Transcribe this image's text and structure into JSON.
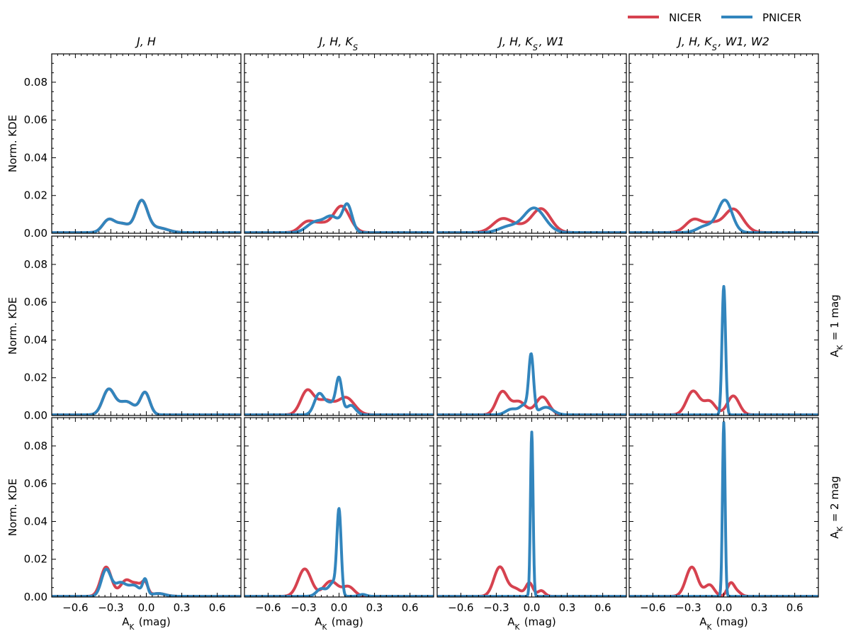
{
  "legend": [
    {
      "name": "NICER",
      "color": "#d6424f"
    },
    {
      "name": "PNICER",
      "color": "#3285bd"
    }
  ],
  "column_titles": [
    "J, H",
    "J, H, K_S",
    "J, H, K_S, W1",
    "J, H, K_S, W1, W2"
  ],
  "row_labels": [
    "",
    "A_K = 1 mag",
    "A_K = 2 mag"
  ],
  "ylabel": "Norm. KDE",
  "xlabel": "A_K (mag)",
  "chart_data": {
    "type": "line",
    "layout": "3x4 grid",
    "xlim": [
      -0.8,
      0.8
    ],
    "ylim": [
      0,
      0.095
    ],
    "xticks": [
      -0.6,
      -0.3,
      0.0,
      0.3,
      0.6
    ],
    "xtick_labels": [
      "−0.6",
      "−0.3",
      "0.0",
      "0.3",
      "0.6"
    ],
    "yticks": [
      0.0,
      0.02,
      0.04,
      0.06,
      0.08
    ],
    "ytick_labels": [
      "0.00",
      "0.02",
      "0.04",
      "0.06",
      "0.08"
    ],
    "panels": [
      {
        "row": 0,
        "col": 0,
        "series": [
          {
            "name": "NICER",
            "gaussians": [
              [
                0.0065,
                -0.32,
                0.05
              ],
              [
                0.0045,
                -0.2,
                0.06
              ],
              [
                0.0165,
                -0.04,
                0.05
              ],
              [
                0.0025,
                0.1,
                0.08
              ]
            ]
          },
          {
            "name": "PNICER",
            "gaussians": [
              [
                0.0065,
                -0.32,
                0.05
              ],
              [
                0.0045,
                -0.2,
                0.06
              ],
              [
                0.0165,
                -0.04,
                0.05
              ],
              [
                0.0025,
                0.1,
                0.08
              ]
            ]
          }
        ]
      },
      {
        "row": 0,
        "col": 1,
        "series": [
          {
            "name": "NICER",
            "gaussians": [
              [
                0.0055,
                -0.27,
                0.06
              ],
              [
                0.004,
                -0.15,
                0.06
              ],
              [
                0.014,
                0.02,
                0.07
              ]
            ]
          },
          {
            "name": "PNICER",
            "gaussians": [
              [
                0.0055,
                -0.2,
                0.07
              ],
              [
                0.008,
                -0.06,
                0.06
              ],
              [
                0.0145,
                0.07,
                0.04
              ]
            ]
          }
        ]
      },
      {
        "row": 0,
        "col": 2,
        "series": [
          {
            "name": "NICER",
            "gaussians": [
              [
                0.007,
                -0.25,
                0.08
              ],
              [
                0.0025,
                -0.1,
                0.08
              ],
              [
                0.0125,
                0.08,
                0.08
              ]
            ]
          },
          {
            "name": "PNICER",
            "gaussians": [
              [
                0.003,
                -0.2,
                0.08
              ],
              [
                0.013,
                0.02,
                0.09
              ]
            ]
          }
        ]
      },
      {
        "row": 0,
        "col": 3,
        "series": [
          {
            "name": "NICER",
            "gaussians": [
              [
                0.007,
                -0.25,
                0.07
              ],
              [
                0.004,
                -0.1,
                0.06
              ],
              [
                0.0125,
                0.08,
                0.08
              ]
            ]
          },
          {
            "name": "PNICER",
            "gaussians": [
              [
                0.0035,
                -0.15,
                0.07
              ],
              [
                0.017,
                0.01,
                0.06
              ]
            ]
          }
        ]
      },
      {
        "row": 1,
        "col": 0,
        "series": [
          {
            "name": "NICER",
            "gaussians": [
              [
                0.013,
                -0.32,
                0.05
              ],
              [
                0.007,
                -0.17,
                0.07
              ],
              [
                0.0115,
                -0.01,
                0.04
              ]
            ]
          },
          {
            "name": "PNICER",
            "gaussians": [
              [
                0.013,
                -0.32,
                0.05
              ],
              [
                0.007,
                -0.17,
                0.07
              ],
              [
                0.0115,
                -0.01,
                0.04
              ]
            ]
          }
        ]
      },
      {
        "row": 1,
        "col": 1,
        "series": [
          {
            "name": "NICER",
            "gaussians": [
              [
                0.0125,
                -0.27,
                0.055
              ],
              [
                0.0075,
                -0.12,
                0.07
              ],
              [
                0.009,
                0.06,
                0.07
              ]
            ]
          },
          {
            "name": "PNICER",
            "gaussians": [
              [
                0.0105,
                -0.17,
                0.04
              ],
              [
                0.006,
                -0.07,
                0.05
              ],
              [
                0.0175,
                0.0,
                0.025
              ],
              [
                0.005,
                0.1,
                0.04
              ]
            ]
          }
        ]
      },
      {
        "row": 1,
        "col": 2,
        "series": [
          {
            "name": "NICER",
            "gaussians": [
              [
                0.012,
                -0.25,
                0.05
              ],
              [
                0.007,
                -0.11,
                0.06
              ],
              [
                0.0095,
                0.09,
                0.055
              ]
            ]
          },
          {
            "name": "PNICER",
            "gaussians": [
              [
                0.003,
                -0.17,
                0.05
              ],
              [
                0.005,
                -0.06,
                0.04
              ],
              [
                0.03,
                -0.005,
                0.02
              ],
              [
                0.004,
                0.12,
                0.06
              ]
            ]
          }
        ]
      },
      {
        "row": 1,
        "col": 3,
        "series": [
          {
            "name": "NICER",
            "gaussians": [
              [
                0.0125,
                -0.26,
                0.055
              ],
              [
                0.007,
                -0.12,
                0.05
              ],
              [
                0.01,
                0.08,
                0.05
              ]
            ]
          },
          {
            "name": "PNICER",
            "gaussians": [
              [
                0.068,
                0.0,
                0.015
              ]
            ]
          }
        ]
      },
      {
        "row": 2,
        "col": 0,
        "series": [
          {
            "name": "NICER",
            "gaussians": [
              [
                0.0155,
                -0.34,
                0.045
              ],
              [
                0.0085,
                -0.17,
                0.05
              ],
              [
                0.0055,
                -0.07,
                0.04
              ],
              [
                0.006,
                -0.01,
                0.025
              ],
              [
                0.0015,
                0.1,
                0.06
              ]
            ]
          },
          {
            "name": "PNICER",
            "gaussians": [
              [
                0.014,
                -0.34,
                0.04
              ],
              [
                0.007,
                -0.22,
                0.05
              ],
              [
                0.0055,
                -0.1,
                0.05
              ],
              [
                0.008,
                -0.01,
                0.02
              ],
              [
                0.0015,
                0.1,
                0.06
              ]
            ]
          }
        ]
      },
      {
        "row": 2,
        "col": 1,
        "series": [
          {
            "name": "NICER",
            "gaussians": [
              [
                0.0145,
                -0.29,
                0.055
              ],
              [
                0.008,
                -0.07,
                0.06
              ],
              [
                0.005,
                0.08,
                0.05
              ]
            ]
          },
          {
            "name": "PNICER",
            "gaussians": [
              [
                0.004,
                -0.15,
                0.04
              ],
              [
                0.007,
                -0.05,
                0.035
              ],
              [
                0.044,
                0.0,
                0.018
              ],
              [
                0.001,
                0.2,
                0.03
              ]
            ]
          }
        ]
      },
      {
        "row": 2,
        "col": 2,
        "series": [
          {
            "name": "NICER",
            "gaussians": [
              [
                0.0155,
                -0.27,
                0.05
              ],
              [
                0.004,
                -0.14,
                0.05
              ],
              [
                0.007,
                -0.02,
                0.03
              ],
              [
                0.003,
                0.08,
                0.03
              ]
            ]
          },
          {
            "name": "PNICER",
            "gaussians": [
              [
                0.087,
                0.0,
                0.011
              ]
            ]
          }
        ]
      },
      {
        "row": 2,
        "col": 3,
        "series": [
          {
            "name": "NICER",
            "gaussians": [
              [
                0.0155,
                -0.27,
                0.05
              ],
              [
                0.006,
                -0.12,
                0.04
              ],
              [
                0.007,
                0.06,
                0.03
              ],
              [
                0.002,
                0.12,
                0.03
              ]
            ]
          },
          {
            "name": "PNICER",
            "gaussians": [
              [
                0.092,
                0.0,
                0.011
              ]
            ]
          }
        ]
      }
    ]
  }
}
